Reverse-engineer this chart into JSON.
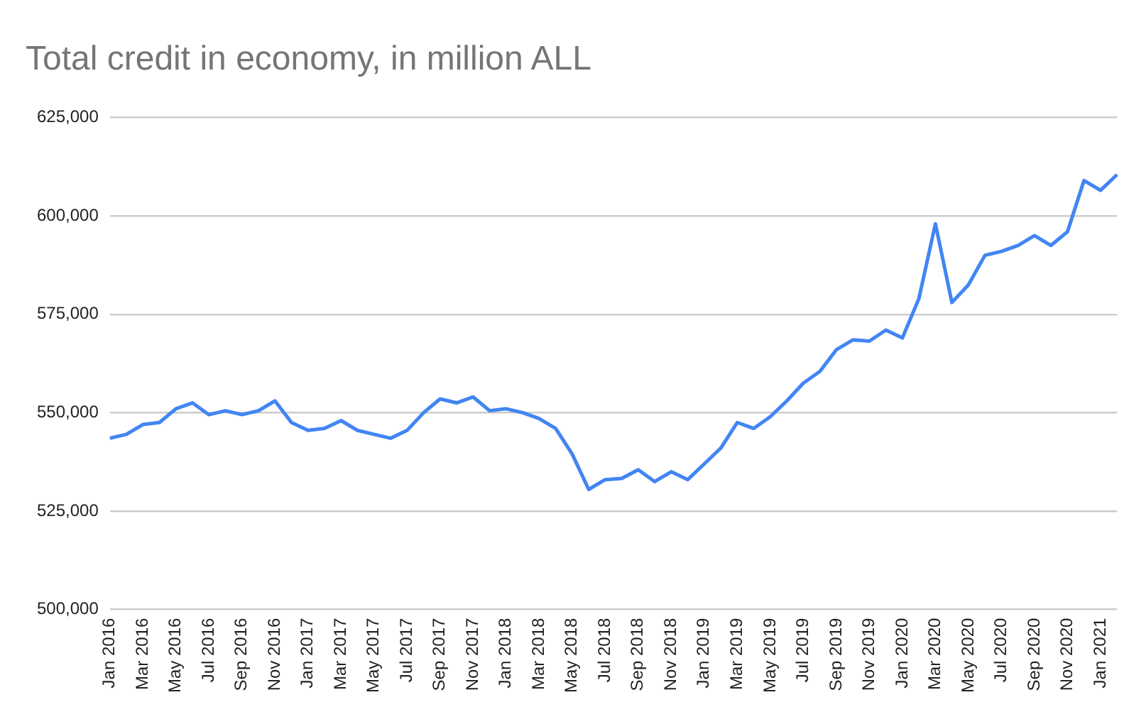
{
  "chart_data": {
    "type": "line",
    "title": "Total credit in economy, in million ALL",
    "categories": [
      "Jan 2016",
      null,
      "Mar 2016",
      null,
      "May 2016",
      null,
      "Jul 2016",
      null,
      "Sep 2016",
      null,
      "Nov 2016",
      null,
      "Jan 2017",
      null,
      "Mar 2017",
      null,
      "May 2017",
      null,
      "Jul 2017",
      null,
      "Sep 2017",
      null,
      "Nov 2017",
      null,
      "Jan 2018",
      null,
      "Mar 2018",
      null,
      "May 2018",
      null,
      "Jul 2018",
      null,
      "Sep 2018",
      null,
      "Nov 2018",
      null,
      "Jan 2019",
      null,
      "Mar 2019",
      null,
      "May 2019",
      null,
      "Jul 2019",
      null,
      "Sep 2019",
      null,
      "Nov 2019",
      null,
      "Jan 2020",
      null,
      "Mar 2020",
      null,
      "May 2020",
      null,
      "Jul 2020",
      null,
      "Sep 2020",
      null,
      "Nov 2020",
      null,
      "Jan 2021",
      null
    ],
    "series": [
      {
        "color": "#4285f4",
        "values": [
          543500,
          544500,
          547000,
          547500,
          551000,
          552500,
          549500,
          550500,
          549500,
          550500,
          553000,
          547500,
          545500,
          546000,
          548000,
          545500,
          544500,
          543500,
          545500,
          550000,
          553500,
          552500,
          554000,
          550500,
          551000,
          550000,
          548500,
          546000,
          539500,
          530500,
          533000,
          533300,
          535500,
          532500,
          535000,
          533000,
          537000,
          541000,
          547500,
          546000,
          549000,
          553000,
          557500,
          560500,
          566000,
          568500,
          568200,
          571000,
          569000,
          579000,
          598000,
          578000,
          582500,
          590000,
          591000,
          592500,
          595000,
          592500,
          596000,
          609000,
          606500,
          610500
        ]
      }
    ],
    "ylim": [
      500000,
      625000
    ],
    "yticks": [
      {
        "value": 500000,
        "label": "500,000"
      },
      {
        "value": 525000,
        "label": "525,000"
      },
      {
        "value": 550000,
        "label": "550,000"
      },
      {
        "value": 575000,
        "label": "575,000"
      },
      {
        "value": 600000,
        "label": "600,000"
      },
      {
        "value": 625000,
        "label": "625,000"
      }
    ],
    "grid": "y",
    "legend": false,
    "marker": "none",
    "line_style": "solid"
  }
}
